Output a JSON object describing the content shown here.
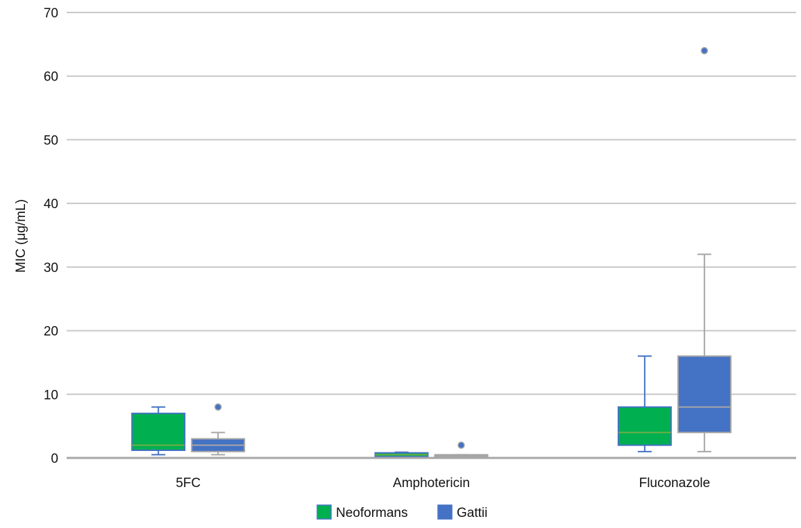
{
  "chart_data": {
    "type": "box",
    "title": "",
    "xlabel": "",
    "ylabel": "MIC (μg/mL)",
    "ylim": [
      0,
      70
    ],
    "yticks": [
      0,
      10,
      20,
      30,
      40,
      50,
      60,
      70
    ],
    "grid": true,
    "legend_position": "bottom",
    "categories": [
      "5FC",
      "Amphotericin",
      "Fluconazole"
    ],
    "series": [
      {
        "name": "Neoformans",
        "color": "#00b050",
        "boxes": [
          {
            "min": 0.5,
            "q1": 1.2,
            "median": 2,
            "q3": 7,
            "max": 8,
            "outliers": []
          },
          {
            "min": 0.1,
            "q1": 0.2,
            "median": 0.5,
            "q3": 0.8,
            "max": 0.9,
            "outliers": []
          },
          {
            "min": 1,
            "q1": 2,
            "median": 4,
            "q3": 8,
            "max": 16,
            "outliers": []
          }
        ]
      },
      {
        "name": "Gattii",
        "color": "#4472c4",
        "boxes": [
          {
            "min": 0.5,
            "q1": 1,
            "median": 2,
            "q3": 3,
            "max": 4,
            "outliers": [
              8
            ]
          },
          {
            "min": 0.1,
            "q1": 0.2,
            "median": 0.3,
            "q3": 0.5,
            "max": 0.5,
            "outliers": [
              2
            ]
          },
          {
            "min": 1,
            "q1": 4,
            "median": 8,
            "q3": 16,
            "max": 32,
            "outliers": [
              64
            ]
          }
        ]
      }
    ]
  }
}
